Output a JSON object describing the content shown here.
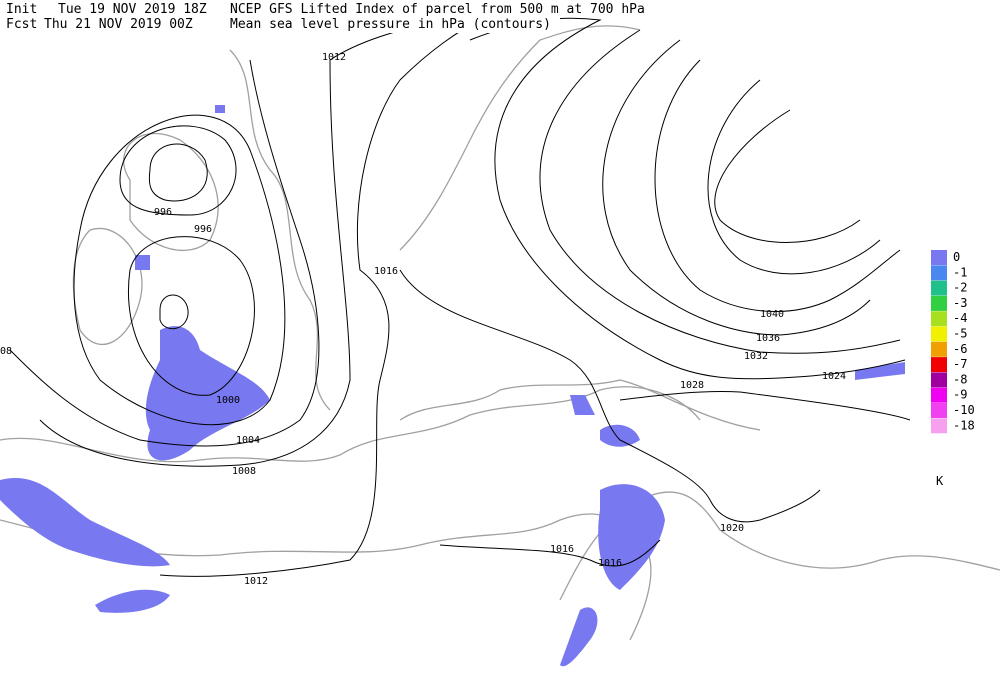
{
  "header": {
    "init_label": "Init",
    "init_time": "Tue 19 NOV 2019 18Z",
    "title": "NCEP GFS Lifted Index of parcel from 500 m at 700 hPa",
    "fcst_label": "Fcst",
    "fcst_time": "Thu 21 NOV 2019 00Z",
    "subtitle": "Mean sea level pressure in hPa (contours)"
  },
  "contour_labels": [
    "1012",
    "996",
    "996",
    "1016",
    "1000",
    "1004",
    "1008",
    "1012",
    "1016",
    "1016",
    "1020",
    "1024",
    "1028",
    "1032",
    "1036",
    "1040",
    "08"
  ],
  "legend": {
    "items": [
      {
        "label": "0",
        "color": "#7878f0"
      },
      {
        "label": "-1",
        "color": "#4a88f0"
      },
      {
        "label": "-2",
        "color": "#20c08c"
      },
      {
        "label": "-3",
        "color": "#30d040"
      },
      {
        "label": "-4",
        "color": "#a8e020"
      },
      {
        "label": "-5",
        "color": "#f0f000"
      },
      {
        "label": "-6",
        "color": "#f0a000"
      },
      {
        "label": "-7",
        "color": "#f00000"
      },
      {
        "label": "-8",
        "color": "#a000a0"
      },
      {
        "label": "-9",
        "color": "#f000f0"
      },
      {
        "label": "-10",
        "color": "#f040f0"
      },
      {
        "label": "-18",
        "color": "#f8a0f0"
      }
    ],
    "unit": "K"
  }
}
